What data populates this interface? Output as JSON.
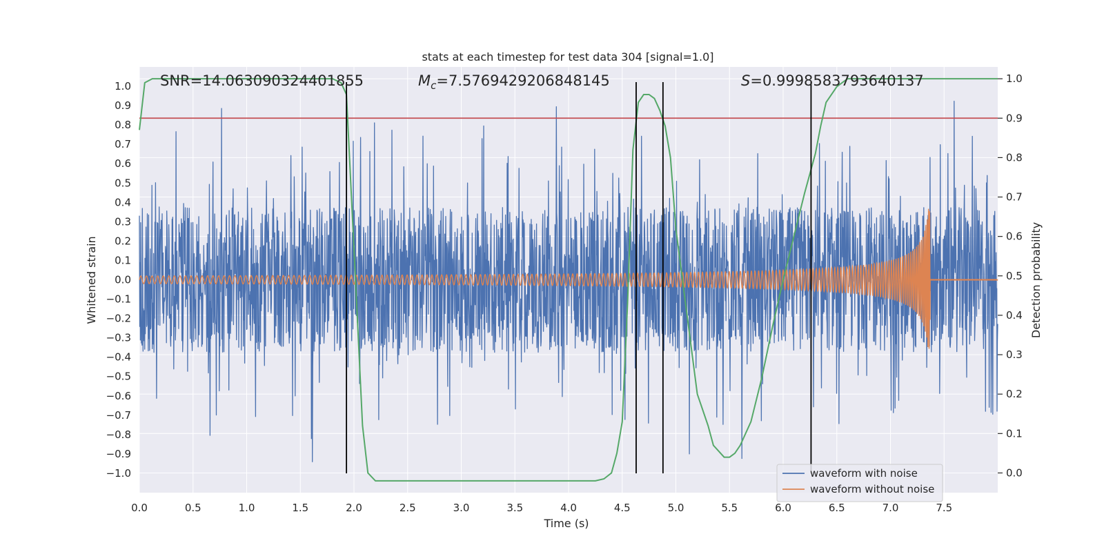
{
  "chart_data": {
    "type": "line",
    "title": "stats at each timestep for test data 304 [signal=1.0]",
    "xlabel": "Time (s)",
    "ylabel": "Whitened strain",
    "ylabel_right": "Detection probability",
    "xlim": [
      0.0,
      8.0
    ],
    "ylim": [
      -1.1,
      1.1
    ],
    "ylim_right": [
      -0.05,
      1.03
    ],
    "x_ticks": [
      "0.0",
      "0.5",
      "1.0",
      "1.5",
      "2.0",
      "2.5",
      "3.0",
      "3.5",
      "4.0",
      "4.5",
      "5.0",
      "5.5",
      "6.0",
      "6.5",
      "7.0",
      "7.5"
    ],
    "y_ticks": [
      "1.0",
      "0.9",
      "0.8",
      "0.7",
      "0.6",
      "0.5",
      "0.4",
      "0.3",
      "0.2",
      "0.1",
      "0.0",
      "−0.1",
      "−0.2",
      "−0.3",
      "−0.4",
      "−0.5",
      "−0.6",
      "−0.7",
      "−0.8",
      "−0.9",
      "−1.0"
    ],
    "y_right_ticks": [
      "1.0",
      "0.9",
      "0.8",
      "0.7",
      "0.6",
      "0.5",
      "0.4",
      "0.3",
      "0.2",
      "0.1",
      "0.0"
    ],
    "annotations": {
      "snr": "SNR=14.063090324401855",
      "mc_symbol": "M",
      "mc_sub": "c",
      "mc_value": "=7.5769429206848145",
      "s_symbol": "S",
      "s_value": "=0.9998583793640137"
    },
    "threshold": {
      "name": "threshold",
      "value": 0.9,
      "axis": "right",
      "color": "#c44e52"
    },
    "vertical_lines": [
      1.93,
      4.63,
      4.88,
      6.26
    ],
    "series": [
      {
        "name": "waveform with noise",
        "color": "#4c72b0",
        "axis": "left",
        "kind": "noise",
        "seed": 304
      },
      {
        "name": "waveform without noise",
        "color": "#dd8452",
        "axis": "left",
        "kind": "chirp",
        "merger_time": 7.37,
        "start_amplitude": 0.02,
        "peak_amplitude": 0.37
      },
      {
        "name": "detection probability",
        "color": "#55a868",
        "axis": "right",
        "kind": "probability",
        "x": [
          0.0,
          0.05,
          0.12,
          0.25,
          0.5,
          1.0,
          1.5,
          1.8,
          1.88,
          1.93,
          1.98,
          2.03,
          2.08,
          2.13,
          2.2,
          2.5,
          3.0,
          3.5,
          4.0,
          4.25,
          4.33,
          4.4,
          4.45,
          4.5,
          4.55,
          4.6,
          4.65,
          4.7,
          4.75,
          4.8,
          4.85,
          4.9,
          4.95,
          5.0,
          5.1,
          5.2,
          5.3,
          5.35,
          5.45,
          5.5,
          5.55,
          5.6,
          5.7,
          5.8,
          5.9,
          6.0,
          6.1,
          6.2,
          6.3,
          6.35,
          6.4,
          6.5,
          6.6,
          7.0,
          7.5,
          8.0
        ],
        "y": [
          0.87,
          0.99,
          1.0,
          1.0,
          1.0,
          1.0,
          1.0,
          1.0,
          0.99,
          0.96,
          0.68,
          0.4,
          0.12,
          0.0,
          -0.02,
          -0.02,
          -0.02,
          -0.02,
          -0.02,
          -0.02,
          -0.015,
          0.0,
          0.05,
          0.13,
          0.43,
          0.82,
          0.94,
          0.96,
          0.96,
          0.95,
          0.92,
          0.88,
          0.8,
          0.62,
          0.41,
          0.2,
          0.12,
          0.07,
          0.04,
          0.04,
          0.05,
          0.07,
          0.13,
          0.24,
          0.37,
          0.49,
          0.6,
          0.71,
          0.81,
          0.88,
          0.94,
          0.98,
          1.0,
          1.0,
          1.0,
          1.0
        ]
      }
    ],
    "legend": {
      "position": "lower-right",
      "entries": [
        {
          "label": "waveform with noise",
          "color": "#4c72b0"
        },
        {
          "label": "waveform without noise",
          "color": "#dd8452"
        }
      ]
    },
    "background": "#eaeaf2",
    "grid": true
  }
}
